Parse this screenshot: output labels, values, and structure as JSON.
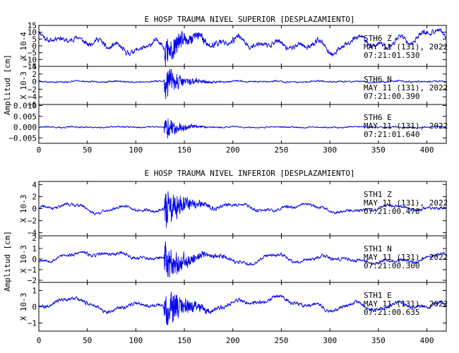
{
  "colors": {
    "trace": "#0000ee",
    "axes": "#000000",
    "background": "#ffffff"
  },
  "chart_data": [
    {
      "type": "line",
      "title": "E HOSP TRAUMA NIVEL SUPERIOR [DESPLAZAMIENTO]",
      "ylabel": "Amplitud [cm]",
      "xlim": [
        0,
        420
      ],
      "x_ticks": [
        "0",
        "50",
        "100",
        "150",
        "200",
        "250",
        "300",
        "350",
        "400"
      ],
      "panels": [
        {
          "station": "STH6",
          "component": "Z",
          "date": "MAY 11 (131), 2022",
          "time": "07:21:01.530",
          "scale": "X 10-4",
          "ylim": [
            -15,
            15
          ],
          "y_ticks": [
            -15,
            -10,
            -5,
            0,
            5,
            10,
            15
          ],
          "y_tick_labels": [
            "−15",
            "−10",
            "−5",
            "0",
            "5",
            "10",
            "15"
          ],
          "trace": {
            "noise": 2.6,
            "wave": 5.5,
            "event_amp": 12,
            "decay": 22,
            "seed": 11,
            "anchors": [
              [
                0,
                4
              ],
              [
                25,
                8
              ],
              [
                45,
                2
              ],
              [
                60,
                5
              ],
              [
                75,
                -2
              ],
              [
                85,
                -6
              ],
              [
                100,
                -1
              ],
              [
                115,
                3
              ],
              [
                132,
                -3
              ],
              [
                150,
                4
              ],
              [
                170,
                2
              ],
              [
                190,
                5
              ],
              [
                210,
                3
              ],
              [
                230,
                1
              ],
              [
                250,
                -2
              ],
              [
                265,
                3
              ],
              [
                285,
                1
              ],
              [
                305,
                -3
              ],
              [
                325,
                2
              ],
              [
                345,
                4
              ],
              [
                360,
                1
              ],
              [
                380,
                5
              ],
              [
                400,
                8
              ],
              [
                420,
                6
              ]
            ]
          }
        },
        {
          "station": "STH6",
          "component": "N",
          "date": "MAY 11 (131), 2022",
          "time": "07:21:00.390",
          "scale": "X 10-3",
          "ylim": [
            -6,
            4
          ],
          "y_ticks": [
            -6,
            -4,
            -2,
            0,
            2,
            4
          ],
          "y_tick_labels": [
            "−6",
            "−4",
            "−2",
            "0",
            "2",
            "4"
          ],
          "trace": {
            "noise": 0.3,
            "wave": 0.2,
            "event_amp": 4.5,
            "decay": 16,
            "seed": 23,
            "anchors": [
              [
                0,
                0
              ],
              [
                420,
                0
              ]
            ]
          }
        },
        {
          "station": "STH6",
          "component": "E",
          "date": "MAY 11 (131), 2022",
          "time": "07:21:01.640",
          "scale": "",
          "ylim": [
            -0.0075,
            0.0105
          ],
          "y_ticks": [
            -0.005,
            0,
            0.005,
            0.01
          ],
          "y_tick_labels": [
            "−0.005",
            "0.000",
            "0.005",
            "0.010"
          ],
          "trace": {
            "noise": 0.0005,
            "wave": 0.0003,
            "event_amp": 0.0055,
            "decay": 14,
            "seed": 37,
            "anchors": [
              [
                0,
                0
              ],
              [
                420,
                0
              ]
            ]
          }
        }
      ]
    },
    {
      "type": "line",
      "title": "E HOSP TRAUMA NIVEL INFERIOR [DESPLAZAMIENTO]",
      "ylabel": "Amplitud [cm]",
      "xlim": [
        0,
        420
      ],
      "x_ticks": [
        "0",
        "50",
        "100",
        "150",
        "200",
        "250",
        "300",
        "350",
        "400"
      ],
      "panels": [
        {
          "station": "STH1",
          "component": "Z",
          "date": "MAY 11 (131), 2022",
          "time": "07:21:00.470",
          "scale": "X 10-3",
          "ylim": [
            -4.5,
            4.5
          ],
          "y_ticks": [
            -4,
            -2,
            0,
            2,
            4
          ],
          "y_tick_labels": [
            "−4",
            "−2",
            "0",
            "2",
            "4"
          ],
          "trace": {
            "noise": 0.35,
            "wave": 0.45,
            "event_amp": 3.6,
            "decay": 18,
            "seed": 41,
            "anchors": [
              [
                0,
                0
              ],
              [
                30,
                0.6
              ],
              [
                60,
                -0.4
              ],
              [
                90,
                0.2
              ],
              [
                120,
                -0.6
              ],
              [
                150,
                0.8
              ],
              [
                180,
                0.3
              ],
              [
                210,
                0.5
              ],
              [
                240,
                -0.3
              ],
              [
                270,
                0.6
              ],
              [
                300,
                -0.2
              ],
              [
                330,
                -0.4
              ],
              [
                360,
                0.3
              ],
              [
                390,
                0.1
              ],
              [
                420,
                0
              ]
            ]
          }
        },
        {
          "station": "STH1",
          "component": "N",
          "date": "MAY 11 (131), 2022",
          "time": "07:21:00.300",
          "scale": "X 10-3",
          "ylim": [
            -2.2,
            2.2
          ],
          "y_ticks": [
            -2,
            -1,
            0,
            1,
            2
          ],
          "y_tick_labels": [
            "−2",
            "−1",
            "0",
            "1",
            "2"
          ],
          "trace": {
            "noise": 0.22,
            "wave": 0.28,
            "event_amp": 1.9,
            "decay": 20,
            "seed": 53,
            "anchors": [
              [
                0,
                -0.4
              ],
              [
                30,
                0.4
              ],
              [
                60,
                0.6
              ],
              [
                90,
                0.3
              ],
              [
                120,
                0.0
              ],
              [
                150,
                -0.2
              ],
              [
                180,
                0.4
              ],
              [
                210,
                -0.4
              ],
              [
                240,
                0.3
              ],
              [
                270,
                -0.2
              ],
              [
                300,
                0.3
              ],
              [
                330,
                -0.3
              ],
              [
                360,
                -0.2
              ],
              [
                390,
                0.0
              ],
              [
                420,
                0.4
              ]
            ]
          }
        },
        {
          "station": "STH1",
          "component": "E",
          "date": "MAY 11 (131), 2022",
          "time": "07:21:00.635",
          "scale": "X 10-3",
          "ylim": [
            -1.5,
            1.5
          ],
          "y_ticks": [
            -1,
            0,
            1
          ],
          "y_tick_labels": [
            "−1",
            "0",
            "1"
          ],
          "trace": {
            "noise": 0.16,
            "wave": 0.2,
            "event_amp": 1.3,
            "decay": 20,
            "seed": 67,
            "anchors": [
              [
                0,
                0
              ],
              [
                25,
                0.5
              ],
              [
                50,
                0.2
              ],
              [
                75,
                -0.3
              ],
              [
                100,
                0.3
              ],
              [
                125,
                -0.1
              ],
              [
                150,
                0.1
              ],
              [
                175,
                -0.2
              ],
              [
                200,
                0.2
              ],
              [
                225,
                0.3
              ],
              [
                250,
                0.6
              ],
              [
                275,
                0.1
              ],
              [
                300,
                -0.2
              ],
              [
                325,
                0.2
              ],
              [
                350,
                -0.1
              ],
              [
                375,
                0.1
              ],
              [
                400,
                0.0
              ],
              [
                420,
                0.3
              ]
            ]
          }
        }
      ]
    }
  ]
}
